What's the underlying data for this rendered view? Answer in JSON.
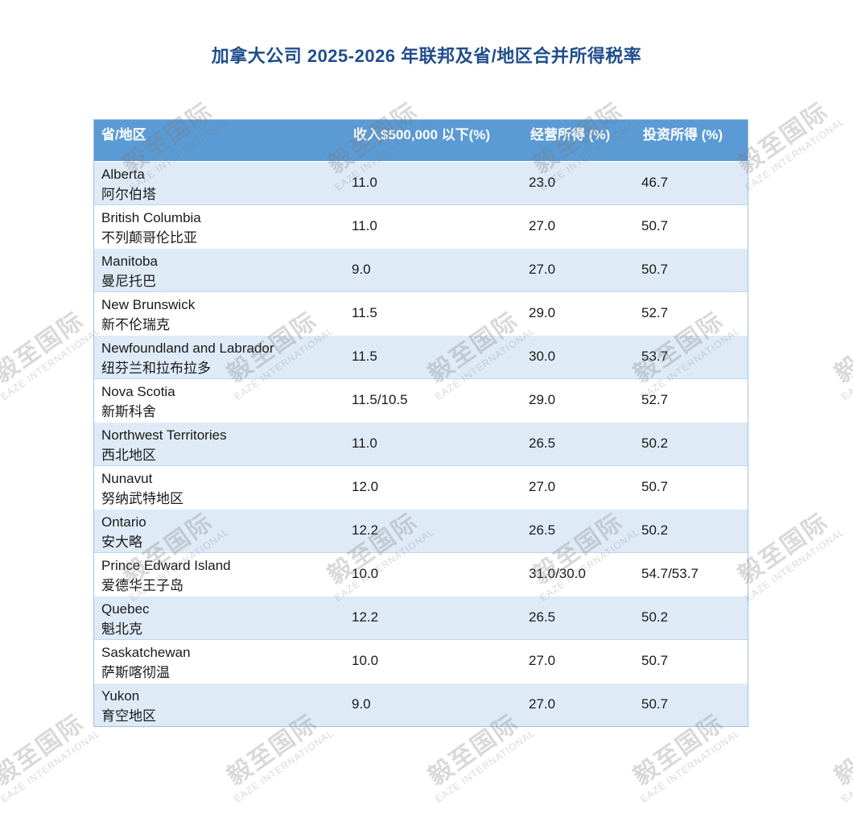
{
  "title": "加拿大公司 2025-2026 年联邦及省/地区合并所得税率",
  "table": {
    "headers": [
      "省/地区",
      "收入$500,000 以下(%)",
      "经营所得 (%)",
      "投资所得 (%)"
    ],
    "rows": [
      {
        "en": "Alberta",
        "zh": "阿尔伯塔",
        "small": "11.0",
        "business": "23.0",
        "investment": "46.7"
      },
      {
        "en": "British Columbia",
        "zh": "不列颠哥伦比亚",
        "small": "11.0",
        "business": "27.0",
        "investment": "50.7"
      },
      {
        "en": "Manitoba",
        "zh": "曼尼托巴",
        "small": "9.0",
        "business": "27.0",
        "investment": "50.7"
      },
      {
        "en": "New Brunswick",
        "zh": "新不伦瑞克",
        "small": "11.5",
        "business": "29.0",
        "investment": "52.7"
      },
      {
        "en": "Newfoundland and Labrador",
        "zh": "纽芬兰和拉布拉多",
        "small": "11.5",
        "business": "30.0",
        "investment": "53.7"
      },
      {
        "en": "Nova Scotia",
        "zh": "新斯科舍",
        "small": "11.5/10.5",
        "business": "29.0",
        "investment": "52.7"
      },
      {
        "en": "Northwest Territories",
        "zh": "西北地区",
        "small": "11.0",
        "business": "26.5",
        "investment": "50.2"
      },
      {
        "en": "Nunavut",
        "zh": "努纳武特地区",
        "small": "12.0",
        "business": "27.0",
        "investment": "50.7"
      },
      {
        "en": "Ontario",
        "zh": "安大略",
        "small": "12.2",
        "business": "26.5",
        "investment": "50.2"
      },
      {
        "en": "Prince Edward Island",
        "zh": "爱德华王子岛",
        "small": "10.0",
        "business": "31.0/30.0",
        "investment": "54.7/53.7"
      },
      {
        "en": "Quebec",
        "zh": "魁北克",
        "small": "12.2",
        "business": "26.5",
        "investment": "50.2"
      },
      {
        "en": "Saskatchewan",
        "zh": "萨斯喀彻温",
        "small": "10.0",
        "business": "27.0",
        "investment": "50.7"
      },
      {
        "en": "Yukon",
        "zh": "育空地区",
        "small": "9.0",
        "business": "27.0",
        "investment": "50.7"
      }
    ]
  },
  "watermark": {
    "cn": "毅至国际",
    "en": "EAZE INTERNATIONAL"
  },
  "colors": {
    "title": "#1f4e8c",
    "header_bg": "#5b9bd5",
    "row_alt": "#deebf7"
  }
}
